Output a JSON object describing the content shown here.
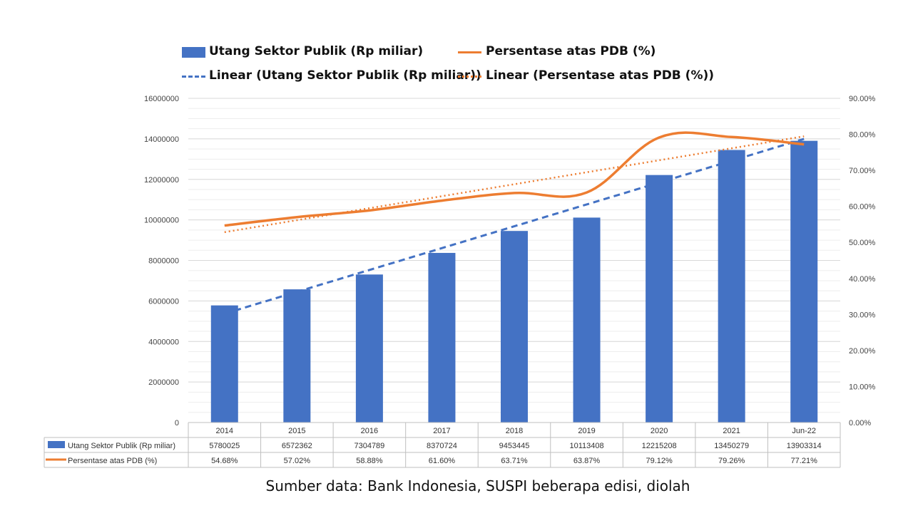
{
  "legend": {
    "bar": "Utang Sektor Publik (Rp miliar)",
    "line": "Persentase atas PDB (%)",
    "bar_trend": "Linear (Utang Sektor Publik (Rp miliar))",
    "line_trend": "Linear (Persentase atas PDB (%))"
  },
  "source_note": "Sumber data: Bank Indonesia, SUSPI beberapa edisi, diolah",
  "colors": {
    "bar": "#4472C4",
    "line": "#ED7D31",
    "grid": "#D9D9D9"
  },
  "chart_data": {
    "type": "bar",
    "categories": [
      "2014",
      "2015",
      "2016",
      "2017",
      "2018",
      "2019",
      "2020",
      "2021",
      "Jun-22"
    ],
    "series": [
      {
        "name": "Utang Sektor Publik (Rp miliar)",
        "type": "bar",
        "axis": "left",
        "values": [
          5780025,
          6572362,
          7304789,
          8370724,
          9453445,
          10113408,
          12215208,
          13450279,
          13903314
        ],
        "labels": [
          "5780025",
          "6572362",
          "7304789",
          "8370724",
          "9453445",
          "10113408",
          "12215208",
          "13450279",
          "13903314"
        ]
      },
      {
        "name": "Persentase atas PDB (%)",
        "type": "line",
        "axis": "right",
        "values": [
          54.68,
          57.02,
          58.88,
          61.6,
          63.71,
          63.87,
          79.12,
          79.26,
          77.21
        ],
        "labels": [
          "54.68%",
          "57.02%",
          "58.88%",
          "61.60%",
          "63.71%",
          "63.87%",
          "79.12%",
          "79.26%",
          "77.21%"
        ]
      }
    ],
    "trendlines": [
      {
        "name": "Linear (Utang Sektor Publik (Rp miliar))",
        "series": 0,
        "style": "dashed"
      },
      {
        "name": "Linear (Persentase atas PDB (%))",
        "series": 1,
        "style": "dotted"
      }
    ],
    "left_axis": {
      "ylim": [
        0,
        16000000
      ],
      "ticks": [
        "0",
        "2000000",
        "4000000",
        "6000000",
        "8000000",
        "10000000",
        "12000000",
        "14000000",
        "16000000"
      ]
    },
    "right_axis": {
      "ylim": [
        0,
        90
      ],
      "ticks": [
        "0.00%",
        "10.00%",
        "20.00%",
        "30.00%",
        "40.00%",
        "50.00%",
        "60.00%",
        "70.00%",
        "80.00%",
        "90.00%"
      ]
    },
    "grid": true,
    "legend_position": "top",
    "data_table": true
  }
}
